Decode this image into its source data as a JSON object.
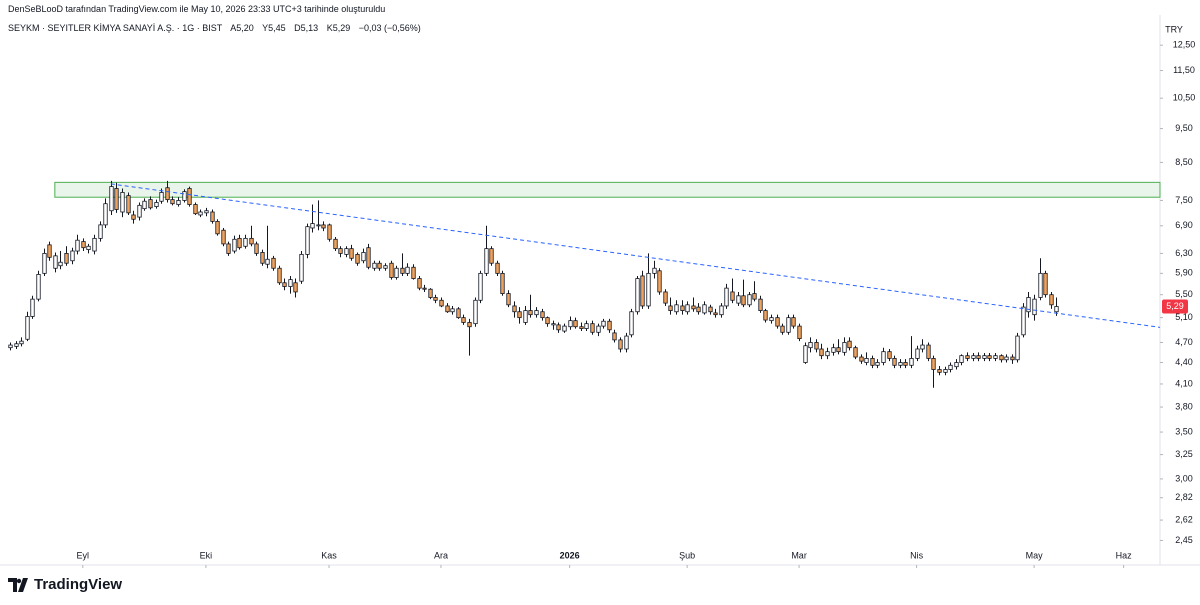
{
  "header": {
    "credit": "DenSeBLooD tarafından TradingView.com ile May 10, 2026 23:33 UTC+3 tarihinde oluşturuldu",
    "symbol": "SEYKM · SEYITLER KİMYA SANAYİ A.Ş. · 1G · BIST",
    "ohlc_labels": [
      "A5,20",
      "Y5,45",
      "D5,13",
      "K5,29"
    ],
    "change": "−0,03 (−0,56%)"
  },
  "footer": {
    "logo": "TradingView"
  },
  "chart_data": {
    "type": "candlestick",
    "currency": "TRY",
    "log_scale": true,
    "grid": false,
    "up_color": "#ffffff",
    "down_color": "#f0a35e",
    "ylim": [
      2.26,
      13.58
    ],
    "yticks": [
      {
        "value": 12.5,
        "label": "12,50"
      },
      {
        "value": 11.5,
        "label": "11,50"
      },
      {
        "value": 10.5,
        "label": "10,50"
      },
      {
        "value": 9.5,
        "label": "9,50"
      },
      {
        "value": 8.5,
        "label": "8,50"
      },
      {
        "value": 7.5,
        "label": "7,50"
      },
      {
        "value": 6.9,
        "label": "6,90"
      },
      {
        "value": 6.3,
        "label": "6,30"
      },
      {
        "value": 5.9,
        "label": "5,90"
      },
      {
        "value": 5.5,
        "label": "5,50"
      },
      {
        "value": 5.1,
        "label": "5,10"
      },
      {
        "value": 4.7,
        "label": "4,70"
      },
      {
        "value": 4.4,
        "label": "4,40"
      },
      {
        "value": 4.1,
        "label": "4,10"
      },
      {
        "value": 3.8,
        "label": "3,80"
      },
      {
        "value": 3.5,
        "label": "3,50"
      },
      {
        "value": 3.25,
        "label": "3,25"
      },
      {
        "value": 3,
        "label": "3,00"
      },
      {
        "value": 2.82,
        "label": "2,82"
      },
      {
        "value": 2.62,
        "label": "2,62"
      },
      {
        "value": 2.45,
        "label": "2,45"
      }
    ],
    "xlim": [
      -1.8,
      205.5
    ],
    "xticks": [
      {
        "value": 13,
        "label": "Eyl"
      },
      {
        "value": 35,
        "label": "Eki"
      },
      {
        "value": 57,
        "label": "Kas"
      },
      {
        "value": 77,
        "label": "Ara"
      },
      {
        "value": 100,
        "label": "2026"
      },
      {
        "value": 121,
        "label": "Şub"
      },
      {
        "value": 141,
        "label": "Mar"
      },
      {
        "value": 162,
        "label": "Nis"
      },
      {
        "value": 183,
        "label": "May"
      },
      {
        "value": 199,
        "label": "Haz"
      }
    ],
    "last_price": {
      "value": 5.29,
      "label": "5,29",
      "color": "#f23645"
    },
    "zone": {
      "from": 7.58,
      "to": 7.96,
      "start": 8,
      "color": "#4caf50"
    },
    "trendline": {
      "x": [
        18,
        205.5
      ],
      "values": [
        7.92,
        4.94
      ],
      "color": "#2962ff"
    },
    "candles": [
      [
        4.62,
        4.7,
        4.58,
        4.66
      ],
      [
        4.64,
        4.72,
        4.6,
        4.68
      ],
      [
        4.68,
        4.78,
        4.64,
        4.72
      ],
      [
        4.75,
        5.2,
        4.72,
        5.12
      ],
      [
        5.12,
        5.48,
        5.08,
        5.42
      ],
      [
        5.42,
        5.95,
        5.38,
        5.88
      ],
      [
        5.9,
        6.4,
        5.85,
        6.3
      ],
      [
        6.48,
        6.55,
        6.15,
        6.22
      ],
      [
        6.0,
        6.32,
        5.92,
        6.25
      ],
      [
        6.05,
        6.35,
        5.98,
        6.12
      ],
      [
        6.3,
        6.45,
        6.05,
        6.1
      ],
      [
        6.15,
        6.42,
        6.08,
        6.35
      ],
      [
        6.35,
        6.7,
        6.28,
        6.58
      ],
      [
        6.55,
        6.62,
        6.35,
        6.42
      ],
      [
        6.38,
        6.5,
        6.3,
        6.45
      ],
      [
        6.35,
        6.7,
        6.28,
        6.62
      ],
      [
        6.62,
        7.0,
        6.55,
        6.92
      ],
      [
        6.92,
        7.55,
        6.85,
        7.42
      ],
      [
        7.25,
        8.0,
        7.15,
        7.85
      ],
      [
        7.8,
        7.95,
        7.2,
        7.28
      ],
      [
        7.22,
        7.8,
        7.1,
        7.7
      ],
      [
        7.62,
        7.7,
        7.15,
        7.2
      ],
      [
        7.15,
        7.25,
        6.95,
        7.05
      ],
      [
        7.1,
        7.45,
        7.02,
        7.38
      ],
      [
        7.3,
        7.55,
        7.25,
        7.48
      ],
      [
        7.52,
        7.6,
        7.28,
        7.32
      ],
      [
        7.35,
        7.52,
        7.3,
        7.45
      ],
      [
        7.48,
        7.8,
        7.42,
        7.7
      ],
      [
        7.82,
        8.0,
        7.45,
        7.52
      ],
      [
        7.52,
        7.6,
        7.38,
        7.42
      ],
      [
        7.4,
        7.58,
        7.35,
        7.5
      ],
      [
        7.5,
        7.78,
        7.45,
        7.72
      ],
      [
        7.8,
        7.85,
        7.35,
        7.4
      ],
      [
        7.4,
        7.45,
        7.15,
        7.18
      ],
      [
        7.15,
        7.28,
        7.1,
        7.22
      ],
      [
        7.2,
        7.32,
        7.12,
        7.25
      ],
      [
        7.22,
        7.28,
        6.95,
        7.0
      ],
      [
        7.0,
        7.05,
        6.68,
        6.72
      ],
      [
        6.8,
        6.85,
        6.45,
        6.5
      ],
      [
        6.5,
        6.55,
        6.25,
        6.3
      ],
      [
        6.35,
        6.68,
        6.3,
        6.6
      ],
      [
        6.62,
        6.7,
        6.38,
        6.42
      ],
      [
        6.45,
        6.7,
        6.4,
        6.62
      ],
      [
        6.62,
        6.9,
        6.45,
        6.5
      ],
      [
        6.5,
        6.55,
        6.25,
        6.3
      ],
      [
        6.32,
        6.38,
        6.05,
        6.1
      ],
      [
        6.08,
        6.9,
        6.0,
        6.18
      ],
      [
        6.2,
        6.25,
        5.95,
        6.0
      ],
      [
        6.0,
        6.05,
        5.68,
        5.72
      ],
      [
        5.72,
        5.8,
        5.58,
        5.65
      ],
      [
        5.65,
        5.85,
        5.52,
        5.78
      ],
      [
        5.72,
        5.8,
        5.45,
        5.55
      ],
      [
        5.75,
        6.35,
        5.7,
        6.28
      ],
      [
        6.28,
        6.95,
        6.2,
        6.88
      ],
      [
        6.85,
        7.4,
        6.75,
        6.95
      ],
      [
        6.9,
        7.5,
        6.8,
        6.92
      ],
      [
        6.92,
        7.0,
        6.78,
        6.85
      ],
      [
        6.92,
        6.95,
        6.55,
        6.6
      ],
      [
        6.6,
        6.65,
        6.35,
        6.4
      ],
      [
        6.4,
        6.45,
        6.22,
        6.3
      ],
      [
        6.28,
        6.45,
        6.22,
        6.4
      ],
      [
        6.4,
        6.48,
        6.15,
        6.2
      ],
      [
        6.28,
        6.32,
        6.05,
        6.1
      ],
      [
        6.15,
        6.4,
        6.1,
        6.32
      ],
      [
        6.42,
        6.5,
        5.98,
        6.02
      ],
      [
        6.0,
        6.15,
        5.95,
        6.1
      ],
      [
        6.1,
        6.15,
        5.95,
        6.0
      ],
      [
        6.0,
        6.1,
        5.95,
        6.05
      ],
      [
        6.1,
        6.15,
        5.78,
        5.82
      ],
      [
        5.82,
        6.05,
        5.78,
        6.0
      ],
      [
        6.0,
        6.3,
        5.85,
        5.9
      ],
      [
        5.9,
        6.1,
        5.85,
        6.02
      ],
      [
        6.02,
        6.08,
        5.78,
        5.8
      ],
      [
        5.8,
        5.85,
        5.58,
        5.62
      ],
      [
        5.62,
        5.68,
        5.55,
        5.6
      ],
      [
        5.6,
        5.62,
        5.42,
        5.45
      ],
      [
        5.45,
        5.5,
        5.35,
        5.4
      ],
      [
        5.4,
        5.45,
        5.28,
        5.3
      ],
      [
        5.3,
        5.35,
        5.18,
        5.2
      ],
      [
        5.2,
        5.3,
        5.15,
        5.25
      ],
      [
        5.25,
        5.28,
        5.08,
        5.1
      ],
      [
        5.1,
        5.15,
        4.98,
        5.02
      ],
      [
        5.02,
        5.08,
        4.5,
        4.95
      ],
      [
        5.0,
        5.45,
        4.95,
        5.4
      ],
      [
        5.4,
        5.95,
        5.35,
        5.9
      ],
      [
        5.9,
        6.9,
        5.85,
        6.4
      ],
      [
        6.4,
        6.45,
        6.05,
        6.1
      ],
      [
        6.1,
        6.15,
        5.85,
        5.9
      ],
      [
        5.9,
        5.95,
        5.48,
        5.52
      ],
      [
        5.52,
        5.58,
        5.28,
        5.32
      ],
      [
        5.3,
        5.38,
        5.1,
        5.2
      ],
      [
        5.2,
        5.28,
        5.0,
        5.1
      ],
      [
        5.02,
        5.3,
        4.98,
        5.22
      ],
      [
        5.22,
        5.5,
        5.1,
        5.15
      ],
      [
        5.15,
        5.28,
        5.1,
        5.22
      ],
      [
        5.2,
        5.25,
        5.05,
        5.1
      ],
      [
        5.1,
        5.12,
        4.95,
        5.0
      ],
      [
        4.98,
        5.05,
        4.9,
        5.0
      ],
      [
        4.98,
        5.02,
        4.85,
        4.9
      ],
      [
        4.88,
        5.0,
        4.85,
        4.96
      ],
      [
        4.95,
        5.12,
        4.9,
        5.05
      ],
      [
        5.05,
        5.1,
        4.92,
        4.95
      ],
      [
        4.95,
        5.02,
        4.88,
        4.92
      ],
      [
        4.92,
        5.05,
        4.88,
        5.0
      ],
      [
        5.0,
        5.05,
        4.82,
        4.86
      ],
      [
        4.86,
        5.0,
        4.8,
        4.96
      ],
      [
        4.96,
        5.08,
        4.92,
        5.04
      ],
      [
        5.04,
        5.08,
        4.85,
        4.9
      ],
      [
        4.85,
        4.9,
        4.7,
        4.74
      ],
      [
        4.74,
        4.78,
        4.55,
        4.6
      ],
      [
        4.6,
        4.85,
        4.55,
        4.8
      ],
      [
        4.82,
        5.25,
        4.78,
        5.2
      ],
      [
        5.2,
        5.85,
        5.15,
        5.8
      ],
      [
        5.85,
        5.95,
        5.25,
        5.3
      ],
      [
        5.3,
        6.3,
        5.25,
        5.9
      ],
      [
        5.9,
        6.15,
        5.8,
        6.0
      ],
      [
        5.95,
        6.0,
        5.5,
        5.55
      ],
      [
        5.55,
        5.6,
        5.3,
        5.35
      ],
      [
        5.3,
        5.45,
        5.15,
        5.22
      ],
      [
        5.2,
        5.4,
        5.15,
        5.32
      ],
      [
        5.3,
        5.4,
        5.15,
        5.22
      ],
      [
        5.2,
        5.38,
        5.15,
        5.32
      ],
      [
        5.3,
        5.45,
        5.2,
        5.25
      ],
      [
        5.28,
        5.35,
        5.15,
        5.2
      ],
      [
        5.18,
        5.38,
        5.15,
        5.32
      ],
      [
        5.28,
        5.32,
        5.15,
        5.2
      ],
      [
        5.18,
        5.25,
        5.1,
        5.15
      ],
      [
        5.15,
        5.35,
        5.1,
        5.3
      ],
      [
        5.3,
        5.7,
        5.25,
        5.62
      ],
      [
        5.55,
        5.8,
        5.35,
        5.4
      ],
      [
        5.35,
        5.55,
        5.3,
        5.48
      ],
      [
        5.48,
        5.78,
        5.28,
        5.32
      ],
      [
        5.32,
        5.55,
        5.28,
        5.5
      ],
      [
        5.52,
        5.75,
        5.38,
        5.42
      ],
      [
        5.42,
        5.48,
        5.18,
        5.22
      ],
      [
        5.22,
        5.25,
        5.02,
        5.06
      ],
      [
        5.05,
        5.15,
        5.0,
        5.1
      ],
      [
        5.1,
        5.15,
        4.92,
        4.96
      ],
      [
        4.96,
        5.0,
        4.82,
        4.86
      ],
      [
        4.86,
        5.15,
        4.82,
        5.1
      ],
      [
        5.1,
        5.15,
        4.92,
        4.96
      ],
      [
        4.96,
        5.0,
        4.72,
        4.76
      ],
      [
        4.4,
        4.7,
        4.38,
        4.65
      ],
      [
        4.62,
        4.78,
        4.55,
        4.7
      ],
      [
        4.7,
        4.75,
        4.55,
        4.6
      ],
      [
        4.6,
        4.68,
        4.45,
        4.5
      ],
      [
        4.5,
        4.62,
        4.45,
        4.56
      ],
      [
        4.55,
        4.68,
        4.5,
        4.62
      ],
      [
        4.62,
        4.75,
        4.52,
        4.56
      ],
      [
        4.55,
        4.78,
        4.5,
        4.7
      ],
      [
        4.72,
        4.78,
        4.58,
        4.62
      ],
      [
        4.62,
        4.65,
        4.45,
        4.48
      ],
      [
        4.48,
        4.52,
        4.38,
        4.42
      ],
      [
        4.4,
        4.55,
        4.36,
        4.46
      ],
      [
        4.46,
        4.5,
        4.32,
        4.36
      ],
      [
        4.36,
        4.45,
        4.32,
        4.4
      ],
      [
        4.4,
        4.62,
        4.36,
        4.56
      ],
      [
        4.56,
        4.6,
        4.42,
        4.46
      ],
      [
        4.46,
        4.5,
        4.32,
        4.36
      ],
      [
        4.36,
        4.45,
        4.32,
        4.4
      ],
      [
        4.4,
        4.45,
        4.32,
        4.36
      ],
      [
        4.36,
        4.8,
        4.32,
        4.46
      ],
      [
        4.46,
        4.65,
        4.42,
        4.6
      ],
      [
        4.6,
        4.75,
        4.55,
        4.66
      ],
      [
        4.66,
        4.7,
        4.42,
        4.46
      ],
      [
        4.46,
        4.5,
        4.05,
        4.3
      ],
      [
        4.3,
        4.35,
        4.22,
        4.26
      ],
      [
        4.26,
        4.34,
        4.22,
        4.3
      ],
      [
        4.3,
        4.4,
        4.26,
        4.36
      ],
      [
        4.34,
        4.45,
        4.3,
        4.4
      ],
      [
        4.4,
        4.52,
        4.36,
        4.5
      ],
      [
        4.5,
        4.55,
        4.42,
        4.46
      ],
      [
        4.46,
        4.54,
        4.42,
        4.5
      ],
      [
        4.5,
        4.55,
        4.42,
        4.46
      ],
      [
        4.46,
        4.54,
        4.42,
        4.5
      ],
      [
        4.5,
        4.54,
        4.42,
        4.46
      ],
      [
        4.46,
        4.54,
        4.42,
        4.5
      ],
      [
        4.5,
        4.52,
        4.4,
        4.44
      ],
      [
        4.44,
        4.52,
        4.4,
        4.48
      ],
      [
        4.48,
        4.52,
        4.38,
        4.44
      ],
      [
        4.44,
        4.85,
        4.4,
        4.8
      ],
      [
        4.82,
        5.35,
        4.78,
        5.28
      ],
      [
        5.2,
        5.55,
        5.1,
        5.45
      ],
      [
        5.15,
        5.5,
        5.05,
        5.42
      ],
      [
        5.45,
        6.2,
        5.4,
        5.9
      ],
      [
        5.9,
        5.95,
        5.45,
        5.5
      ],
      [
        5.5,
        5.55,
        5.25,
        5.32
      ],
      [
        5.2,
        5.45,
        5.13,
        5.29
      ]
    ]
  }
}
